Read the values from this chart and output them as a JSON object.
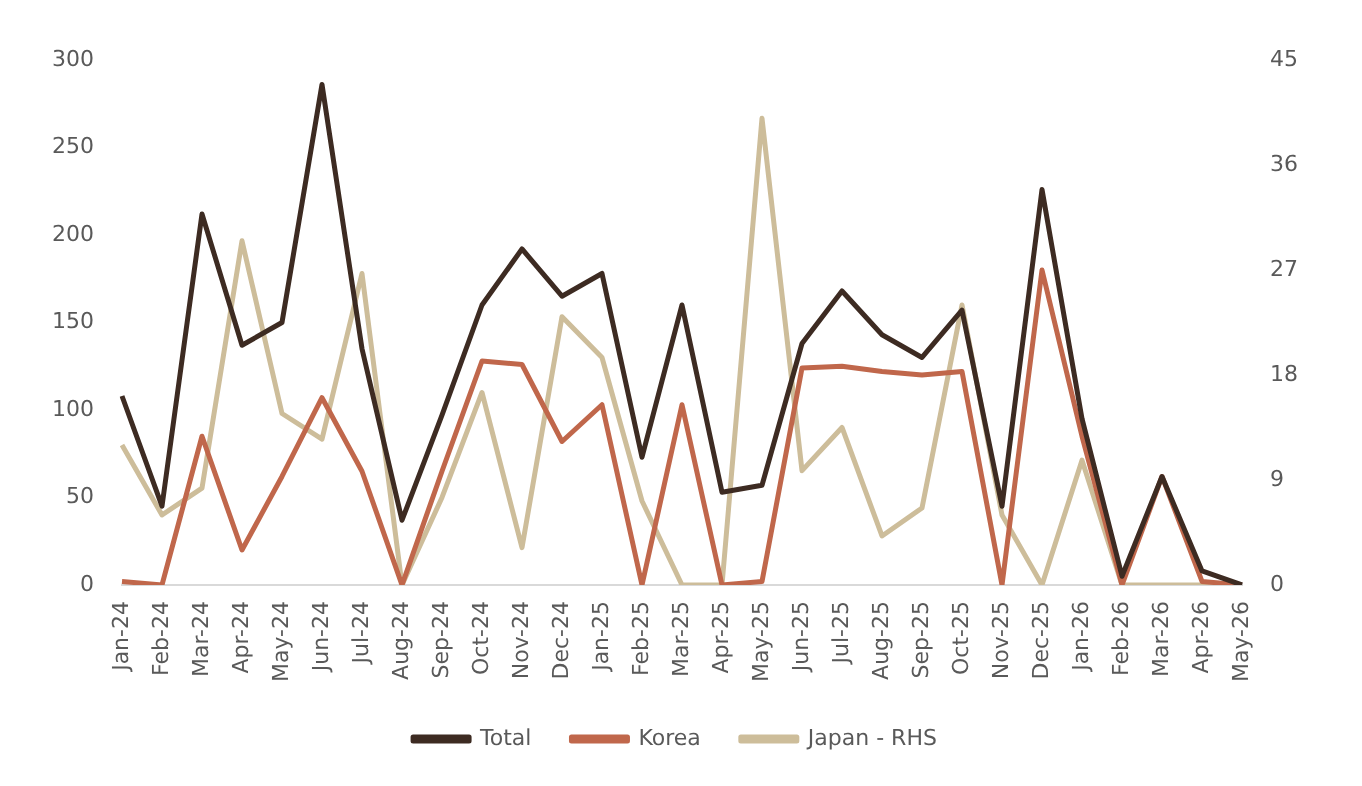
{
  "chart_data": {
    "type": "line",
    "categories": [
      "Jan-24",
      "Feb-24",
      "Mar-24",
      "Apr-24",
      "May-24",
      "Jun-24",
      "Jul-24",
      "Aug-24",
      "Sep-24",
      "Oct-24",
      "Nov-24",
      "Dec-24",
      "Jan-25",
      "Feb-25",
      "Mar-25",
      "Apr-25",
      "May-25",
      "Jun-25",
      "Jul-25",
      "Aug-25",
      "Sep-25",
      "Oct-25",
      "Nov-25",
      "Dec-25",
      "Jan-26",
      "Feb-26",
      "Mar-26",
      "Apr-26",
      "May-26"
    ],
    "series": [
      {
        "name": "Total",
        "color": "#3d2b22",
        "values": [
          108,
          45,
          212,
          137,
          150,
          286,
          135,
          37,
          97,
          160,
          192,
          165,
          178,
          73,
          160,
          53,
          57,
          138,
          168,
          143,
          130,
          157,
          45,
          226,
          95,
          5,
          62,
          8,
          0
        ]
      },
      {
        "name": "Korea",
        "color": "#c0674b",
        "values": [
          2,
          0,
          85,
          20,
          62,
          107,
          65,
          0,
          65,
          128,
          126,
          82,
          103,
          0,
          103,
          0,
          2,
          124,
          125,
          122,
          120,
          122,
          0,
          180,
          85,
          0,
          62,
          2,
          0
        ]
      },
      {
        "name": "Japan - RHS",
        "color": "#cdbd9a",
        "axis": "y2",
        "values": [
          12,
          6,
          8.3,
          29.5,
          14.7,
          12.5,
          26.7,
          0,
          7.5,
          16.5,
          3.2,
          23,
          19.5,
          7.2,
          0,
          0,
          40,
          9.8,
          13.5,
          4.2,
          6.6,
          24,
          6,
          0,
          10.7,
          0,
          0,
          0,
          0
        ]
      }
    ],
    "ylim": [
      0,
      300
    ],
    "yticks": [
      0,
      50,
      100,
      150,
      200,
      250,
      300
    ],
    "y2lim": [
      0,
      45
    ],
    "y2ticks": [
      0,
      9,
      18,
      27,
      36,
      45
    ],
    "grid": false,
    "legend": "bottom",
    "marker": "none",
    "line_style": "solid"
  }
}
